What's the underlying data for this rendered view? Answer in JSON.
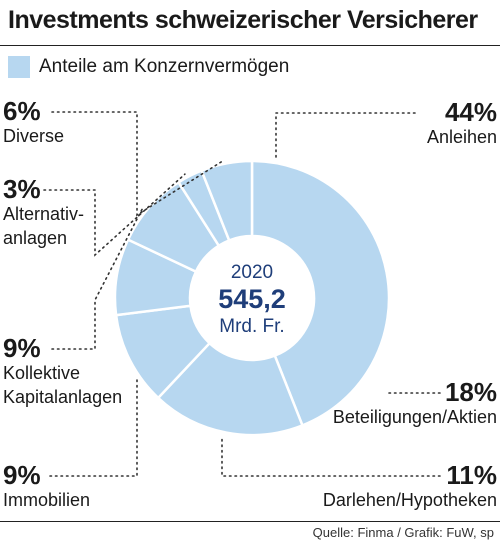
{
  "title": "Investments schweizerischer Versicherer",
  "legend": {
    "label": "Anteile am Konzernvermögen"
  },
  "center": {
    "year": "2020",
    "value": "545,2",
    "unit": "Mrd. Fr."
  },
  "source": "Quelle: Finma / Grafik: FuW, sp",
  "colors": {
    "slice": "#b7d7f0",
    "text": "#1a1a1a",
    "center_text": "#1f3e7a",
    "leader": "#333333"
  },
  "chart_data": {
    "type": "pie",
    "title": "Investments schweizerischer Versicherer",
    "series_name": "Anteile am Konzernvermögen",
    "unit": "%",
    "categories": [
      "Anleihen",
      "Beteiligungen/Aktien",
      "Darlehen/Hypotheken",
      "Immobilien",
      "Kollektive Kapitalanlagen",
      "Alternativanlagen",
      "Diverse"
    ],
    "values": [
      44,
      18,
      11,
      9,
      9,
      3,
      6
    ],
    "value_labels": [
      "44%",
      "18%",
      "11%",
      "9%",
      "9%",
      "3%",
      "6%"
    ],
    "label_lines": [
      [
        "Anleihen"
      ],
      [
        "Beteiligungen/Aktien"
      ],
      [
        "Darlehen/Hypotheken"
      ],
      [
        "Immobilien"
      ],
      [
        "Kollektive",
        "Kapitalanlagen"
      ],
      [
        "Alternativ-",
        "anlagen"
      ],
      [
        "Diverse"
      ]
    ],
    "total": "545,2",
    "total_unit": "Mrd. Fr.",
    "year": "2020"
  }
}
